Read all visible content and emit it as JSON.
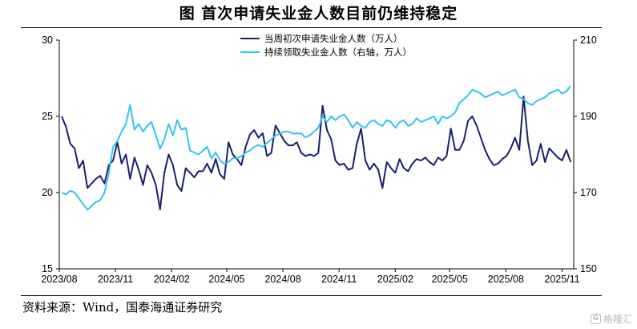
{
  "title": "图    首次申请失业金人数目前仍维持稳定",
  "source": "资料来源：Wind，国泰海通证券研究",
  "watermark": "格隆汇",
  "chart_data": {
    "type": "line",
    "x": [
      "2023-08-05",
      "2023-08-12",
      "2023-08-19",
      "2023-08-26",
      "2023-09-02",
      "2023-09-09",
      "2023-09-16",
      "2023-09-23",
      "2023-09-30",
      "2023-10-07",
      "2023-10-14",
      "2023-10-21",
      "2023-10-28",
      "2023-11-04",
      "2023-11-11",
      "2023-11-18",
      "2023-11-25",
      "2023-12-02",
      "2023-12-09",
      "2023-12-16",
      "2023-12-23",
      "2023-12-30",
      "2024-01-06",
      "2024-01-13",
      "2024-01-20",
      "2024-01-27",
      "2024-02-03",
      "2024-02-10",
      "2024-02-17",
      "2024-02-24",
      "2024-03-02",
      "2024-03-09",
      "2024-03-16",
      "2024-03-23",
      "2024-03-30",
      "2024-04-06",
      "2024-04-13",
      "2024-04-20",
      "2024-04-27",
      "2024-05-04",
      "2024-05-11",
      "2024-05-18",
      "2024-05-25",
      "2024-06-01",
      "2024-06-08",
      "2024-06-15",
      "2024-06-22",
      "2024-06-29",
      "2024-07-06",
      "2024-07-13",
      "2024-07-20",
      "2024-07-27",
      "2024-08-03",
      "2024-08-10",
      "2024-08-17",
      "2024-08-24",
      "2024-08-31",
      "2024-09-07",
      "2024-09-14",
      "2024-09-21",
      "2024-09-28",
      "2024-10-05",
      "2024-10-12",
      "2024-10-19",
      "2024-10-26",
      "2024-11-02",
      "2024-11-09",
      "2024-11-16",
      "2024-11-23",
      "2024-11-30",
      "2024-12-07",
      "2024-12-14",
      "2024-12-21",
      "2024-12-28",
      "2025-01-04",
      "2025-01-11",
      "2025-01-18",
      "2025-01-25",
      "2025-02-01",
      "2025-02-08",
      "2025-02-15",
      "2025-02-22",
      "2025-03-01",
      "2025-03-08",
      "2025-03-15",
      "2025-03-22",
      "2025-03-29",
      "2025-04-05",
      "2025-04-12",
      "2025-04-19",
      "2025-04-26",
      "2025-05-03",
      "2025-05-10",
      "2025-05-17",
      "2025-05-24",
      "2025-05-31",
      "2025-06-07",
      "2025-06-14",
      "2025-06-21",
      "2025-06-28",
      "2025-07-05",
      "2025-07-12",
      "2025-07-19",
      "2025-07-26",
      "2025-08-02",
      "2025-08-09",
      "2025-08-16",
      "2025-08-23",
      "2025-08-30",
      "2025-09-06",
      "2025-09-13",
      "2025-09-20",
      "2025-09-27",
      "2025-10-04",
      "2025-10-11",
      "2025-10-18",
      "2025-10-25",
      "2025-11-01",
      "2025-11-08",
      "2025-11-15"
    ],
    "x_ticks": [
      "2023/08",
      "2023/11",
      "2024/02",
      "2024/05",
      "2024/08",
      "2024/11",
      "2025/02",
      "2025/05",
      "2025/08",
      "2025/11"
    ],
    "y_left_ticks": [
      "15",
      "20",
      "25",
      "30"
    ],
    "y_right_ticks": [
      "150",
      "170",
      "190",
      "210"
    ],
    "ylim_left": [
      15,
      30
    ],
    "ylim_right": [
      150,
      210
    ],
    "legend_position": "top-center",
    "grid": false,
    "series": [
      {
        "name": "当周初次申请失业金人数（万人）",
        "axis": "left",
        "color": "#1a1f6e",
        "values": [
          25.0,
          24.3,
          23.2,
          22.9,
          21.6,
          22.1,
          20.3,
          20.6,
          20.9,
          21.1,
          20.6,
          21.8,
          22.1,
          23.3,
          21.9,
          22.5,
          20.9,
          22.3,
          21.5,
          20.5,
          21.8,
          21.3,
          20.5,
          18.9,
          21.3,
          22.5,
          21.8,
          20.5,
          20.1,
          21.6,
          21.3,
          21.0,
          21.4,
          21.4,
          21.9,
          21.3,
          22.2,
          21.2,
          20.9,
          23.3,
          22.5,
          22.2,
          21.8,
          23.0,
          23.8,
          24.1,
          23.6,
          23.9,
          22.4,
          22.6,
          24.4,
          23.9,
          23.4,
          23.1,
          23.1,
          23.3,
          22.6,
          22.4,
          22.5,
          22.4,
          22.6,
          25.7,
          24.1,
          23.5,
          22.1,
          21.8,
          21.9,
          21.5,
          21.6,
          23.2,
          24.2,
          22.1,
          21.5,
          21.9,
          21.5,
          20.3,
          22.0,
          21.6,
          21.3,
          22.2,
          21.6,
          21.4,
          21.9,
          22.2,
          22.1,
          22.3,
          22.0,
          21.8,
          22.3,
          22.1,
          22.4,
          24.2,
          22.8,
          22.8,
          23.4,
          24.7,
          25.0,
          24.4,
          23.6,
          22.8,
          22.2,
          21.8,
          21.9,
          22.2,
          22.4,
          22.9,
          23.6,
          22.8,
          26.3,
          23.4,
          21.8,
          22.1,
          23.2,
          22.0,
          22.9,
          22.6,
          22.3,
          22.1,
          22.8,
          22.0
        ]
      },
      {
        "name": "持续领取失业金人数（右轴，万人）",
        "axis": "right",
        "color": "#33c4ee",
        "values": [
          170.0,
          169.5,
          170.5,
          170.0,
          168.5,
          167.0,
          165.5,
          166.5,
          167.5,
          168.0,
          170.0,
          175.0,
          182.0,
          183.5,
          186.0,
          188.0,
          193.0,
          186.5,
          188.0,
          186.0,
          187.5,
          188.5,
          185.0,
          181.5,
          184.0,
          188.0,
          185.0,
          189.0,
          186.5,
          187.0,
          181.0,
          180.5,
          180.0,
          181.0,
          182.0,
          179.0,
          180.5,
          178.5,
          177.5,
          178.0,
          179.0,
          179.0,
          179.5,
          180.5,
          181.0,
          182.0,
          182.5,
          182.0,
          183.0,
          184.0,
          185.0,
          185.5,
          186.0,
          186.0,
          185.5,
          185.5,
          185.5,
          184.5,
          185.0,
          186.0,
          187.0,
          190.0,
          188.5,
          190.0,
          189.0,
          190.0,
          190.5,
          189.0,
          187.0,
          188.5,
          187.5,
          187.0,
          188.5,
          189.0,
          188.0,
          187.5,
          189.0,
          188.5,
          187.0,
          188.5,
          189.0,
          187.5,
          188.0,
          189.5,
          188.5,
          189.0,
          189.5,
          190.0,
          188.0,
          190.0,
          189.5,
          190.0,
          191.0,
          193.5,
          194.5,
          195.5,
          197.0,
          196.5,
          196.0,
          195.0,
          195.5,
          196.0,
          196.5,
          195.5,
          196.0,
          196.5,
          197.0,
          195.0,
          194.5,
          193.5,
          193.0,
          194.0,
          194.5,
          195.0,
          196.0,
          196.5,
          197.0,
          196.0,
          196.5,
          198.0
        ]
      }
    ]
  }
}
